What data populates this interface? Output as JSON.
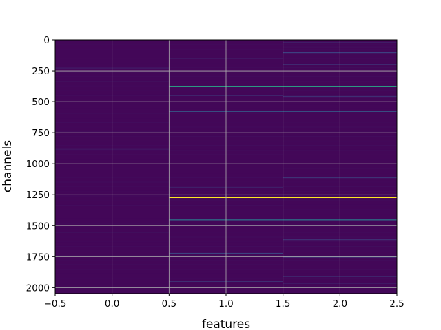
{
  "chart_data": {
    "type": "heatmap",
    "title": "",
    "xlabel": "features",
    "ylabel": "channels",
    "xlim": [
      -0.5,
      2.5
    ],
    "ylim": [
      2048,
      0
    ],
    "y_inverted": true,
    "grid": true,
    "colormap": "viridis",
    "colormap_stops": [
      "#440154",
      "#3b528b",
      "#21918c",
      "#5ec962",
      "#fde725"
    ],
    "xticks": [
      -0.5,
      0.0,
      0.5,
      1.0,
      1.5,
      2.0,
      2.5
    ],
    "xtick_labels": [
      "−0.5",
      "0.0",
      "0.5",
      "1.0",
      "1.5",
      "2.0",
      "2.5"
    ],
    "yticks": [
      0,
      250,
      500,
      750,
      1000,
      1250,
      1500,
      1750,
      2000
    ],
    "ytick_labels": [
      "0",
      "250",
      "500",
      "750",
      "1000",
      "1250",
      "1500",
      "1750",
      "2000"
    ],
    "n_channels": 2048,
    "features": [
      0,
      1,
      2
    ],
    "background_level": 0.02,
    "bands": [
      {
        "feature": 0,
        "channel_start": 225,
        "channel_end": 232,
        "value": 0.08
      },
      {
        "feature": 0,
        "channel_start": 880,
        "channel_end": 886,
        "value": 0.07
      },
      {
        "feature": 0,
        "channel_start": 1995,
        "channel_end": 2001,
        "value": 0.12
      },
      {
        "feature": 1,
        "channel_start": 145,
        "channel_end": 150,
        "value": 0.15
      },
      {
        "feature": 1,
        "channel_start": 372,
        "channel_end": 378,
        "value": 0.55
      },
      {
        "feature": 1,
        "channel_start": 445,
        "channel_end": 450,
        "value": 0.12
      },
      {
        "feature": 1,
        "channel_start": 575,
        "channel_end": 580,
        "value": 0.3
      },
      {
        "feature": 1,
        "channel_start": 1190,
        "channel_end": 1195,
        "value": 0.14
      },
      {
        "feature": 1,
        "channel_start": 1270,
        "channel_end": 1276,
        "value": 1.0
      },
      {
        "feature": 1,
        "channel_start": 1450,
        "channel_end": 1455,
        "value": 0.4
      },
      {
        "feature": 1,
        "channel_start": 1495,
        "channel_end": 1500,
        "value": 0.45
      },
      {
        "feature": 1,
        "channel_start": 1720,
        "channel_end": 1725,
        "value": 0.2
      },
      {
        "feature": 1,
        "channel_start": 1945,
        "channel_end": 1950,
        "value": 0.2
      },
      {
        "feature": 2,
        "channel_start": 20,
        "channel_end": 25,
        "value": 0.18
      },
      {
        "feature": 2,
        "channel_start": 55,
        "channel_end": 60,
        "value": 0.15
      },
      {
        "feature": 2,
        "channel_start": 100,
        "channel_end": 105,
        "value": 0.2
      },
      {
        "feature": 2,
        "channel_start": 195,
        "channel_end": 200,
        "value": 0.14
      },
      {
        "feature": 2,
        "channel_start": 372,
        "channel_end": 378,
        "value": 0.55
      },
      {
        "feature": 2,
        "channel_start": 455,
        "channel_end": 460,
        "value": 0.14
      },
      {
        "feature": 2,
        "channel_start": 575,
        "channel_end": 580,
        "value": 0.3
      },
      {
        "feature": 2,
        "channel_start": 1110,
        "channel_end": 1115,
        "value": 0.15
      },
      {
        "feature": 2,
        "channel_start": 1270,
        "channel_end": 1276,
        "value": 1.0
      },
      {
        "feature": 2,
        "channel_start": 1450,
        "channel_end": 1455,
        "value": 0.42
      },
      {
        "feature": 2,
        "channel_start": 1495,
        "channel_end": 1500,
        "value": 0.45
      },
      {
        "feature": 2,
        "channel_start": 1610,
        "channel_end": 1615,
        "value": 0.15
      },
      {
        "feature": 2,
        "channel_start": 1750,
        "channel_end": 1755,
        "value": 0.2
      },
      {
        "feature": 2,
        "channel_start": 1905,
        "channel_end": 1910,
        "value": 0.22
      },
      {
        "feature": 2,
        "channel_start": 1960,
        "channel_end": 1965,
        "value": 0.18
      }
    ]
  }
}
